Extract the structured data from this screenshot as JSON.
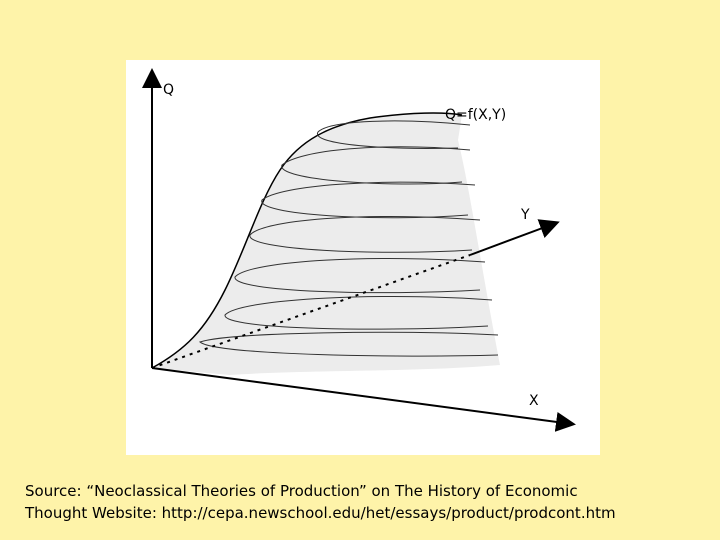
{
  "diagram": {
    "axis_q": "Q",
    "function_label": "Q=f(X,Y)",
    "axis_y": "Y",
    "axis_x": "X"
  },
  "source": {
    "line1": "Source: “Neoclassical Theories of Production” on The History of Economic",
    "line2": "Thought Website: http://cepa.newschool.edu/het/essays/product/prodcont.htm"
  }
}
